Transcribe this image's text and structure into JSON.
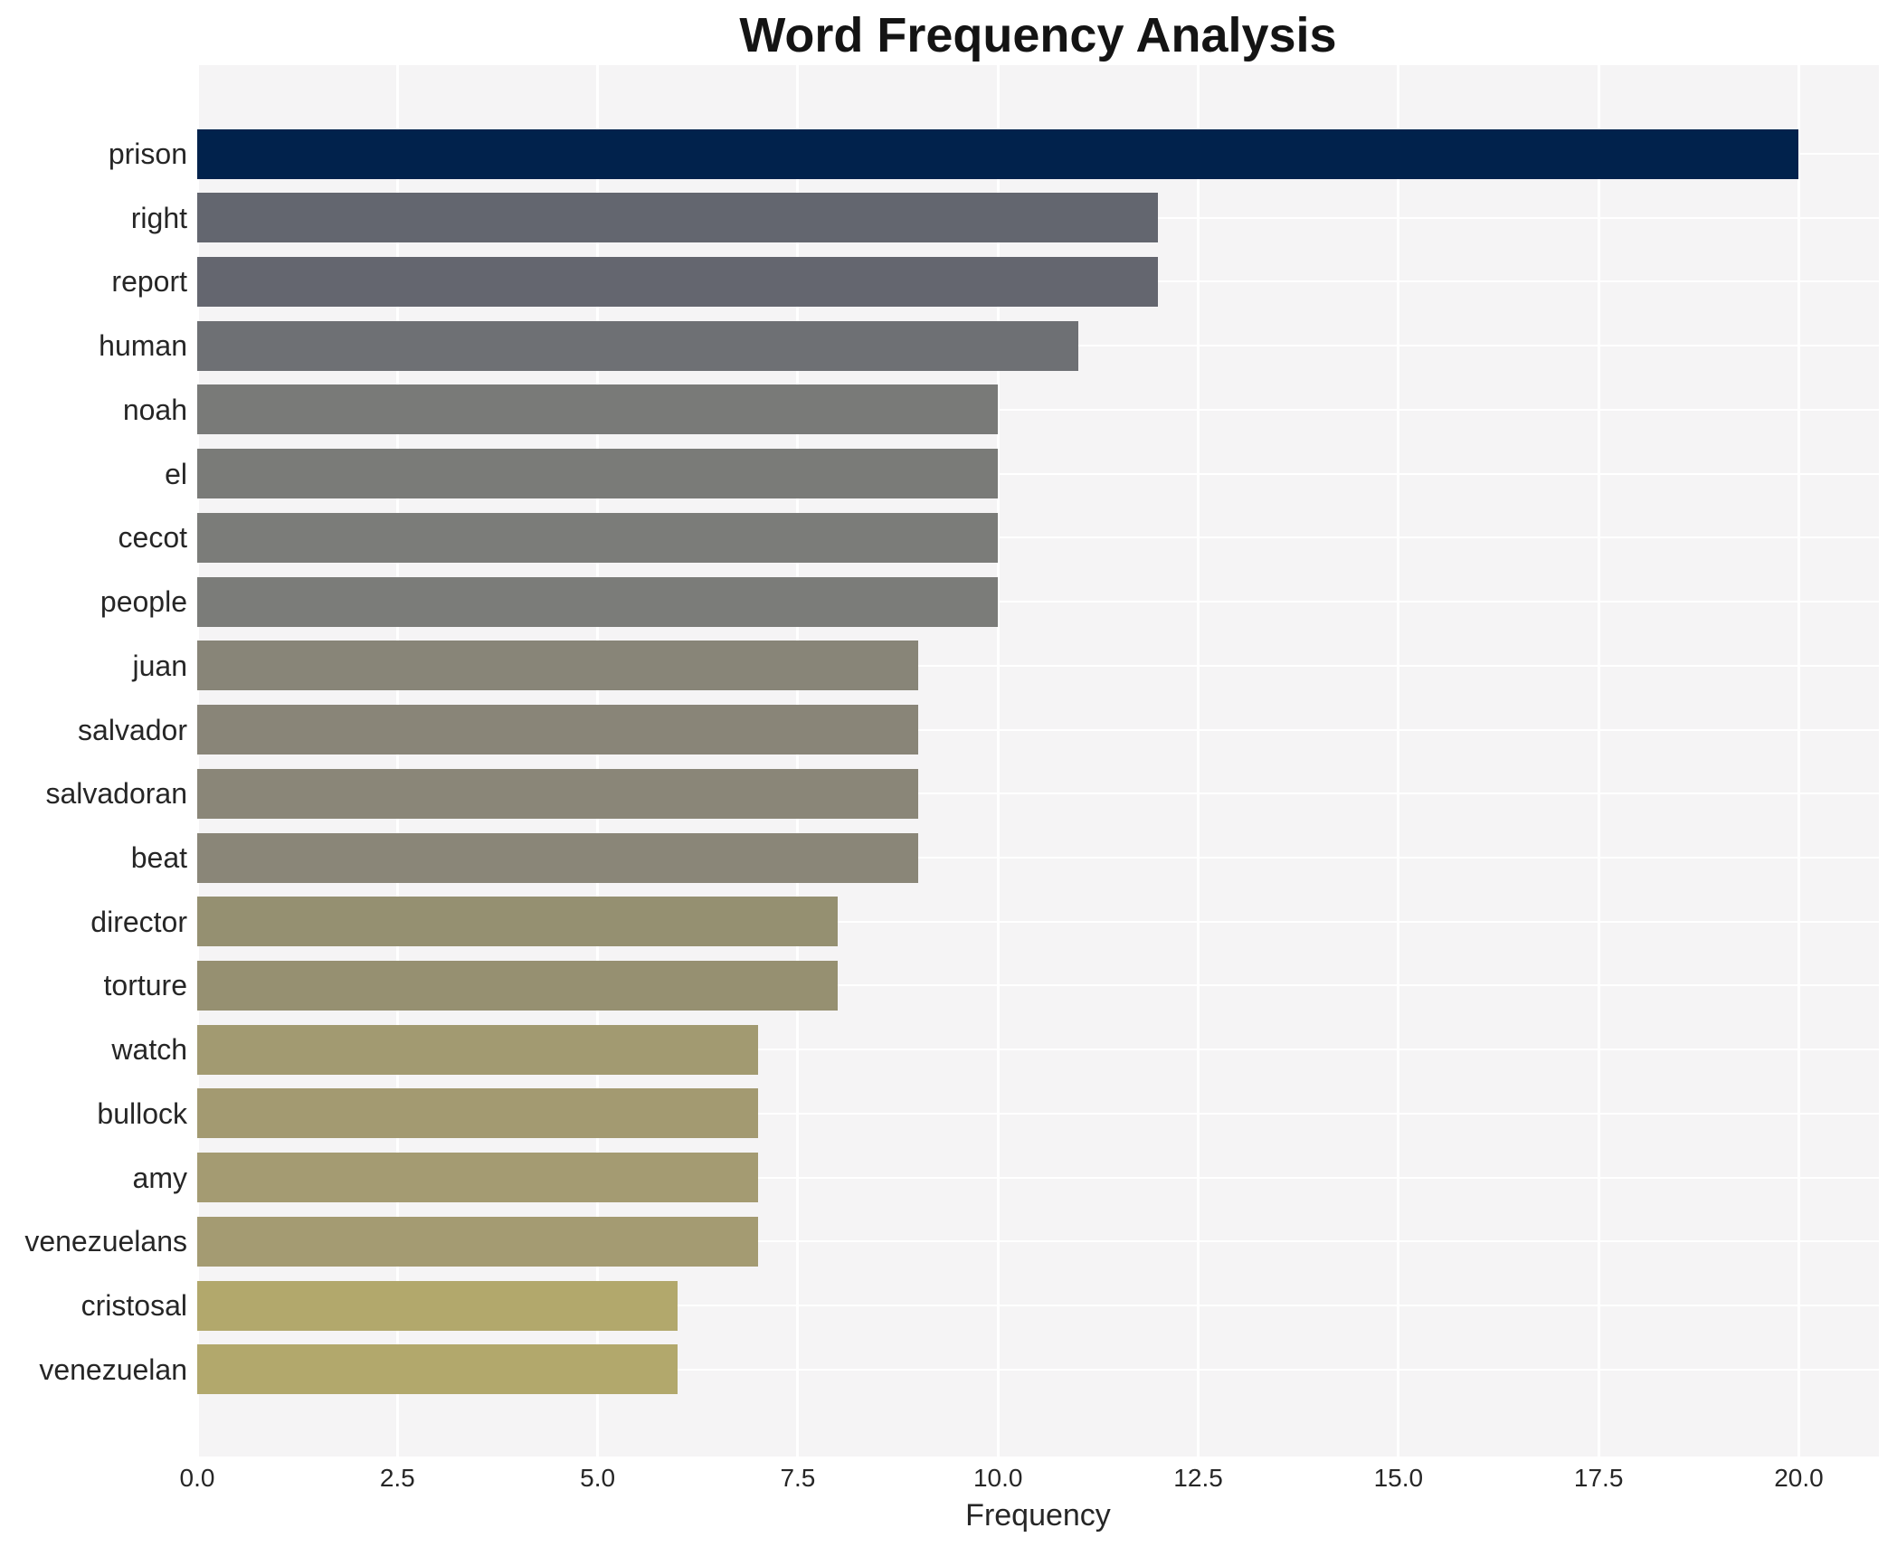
{
  "chart_data": {
    "type": "bar",
    "orientation": "horizontal",
    "title": "Word Frequency Analysis",
    "xlabel": "Frequency",
    "ylabel": "",
    "categories": [
      "prison",
      "right",
      "report",
      "human",
      "noah",
      "el",
      "cecot",
      "people",
      "juan",
      "salvador",
      "salvadoran",
      "beat",
      "director",
      "torture",
      "watch",
      "bullock",
      "amy",
      "venezuelans",
      "cristosal",
      "venezuelan"
    ],
    "values": [
      20,
      12,
      12,
      11,
      10,
      10,
      10,
      10,
      9,
      9,
      9,
      9,
      8,
      8,
      7,
      7,
      7,
      7,
      6,
      6
    ],
    "bar_colors": [
      "#01224c",
      "#63666f",
      "#64666f",
      "#6e7074",
      "#797a78",
      "#7a7b78",
      "#7b7c79",
      "#7b7c79",
      "#888578",
      "#898578",
      "#8a8678",
      "#8a8678",
      "#959071",
      "#969071",
      "#a29a71",
      "#a39a71",
      "#a49b72",
      "#a49b72",
      "#b2a86c",
      "#b2a86c"
    ],
    "x_tick_labels": [
      "0.0",
      "2.5",
      "5.0",
      "7.5",
      "10.0",
      "12.5",
      "15.0",
      "17.5",
      "20.0"
    ],
    "x_tick_values": [
      0,
      2.5,
      5,
      7.5,
      10,
      12.5,
      15,
      17.5,
      20
    ],
    "xlim": [
      0,
      21
    ],
    "grid": true,
    "legend_position": "none",
    "colors": {
      "plot_background": "#f5f4f5",
      "figure_background": "#ffffff",
      "gridline": "#ffffff",
      "text": "#262626",
      "title_text": "#141414"
    }
  }
}
